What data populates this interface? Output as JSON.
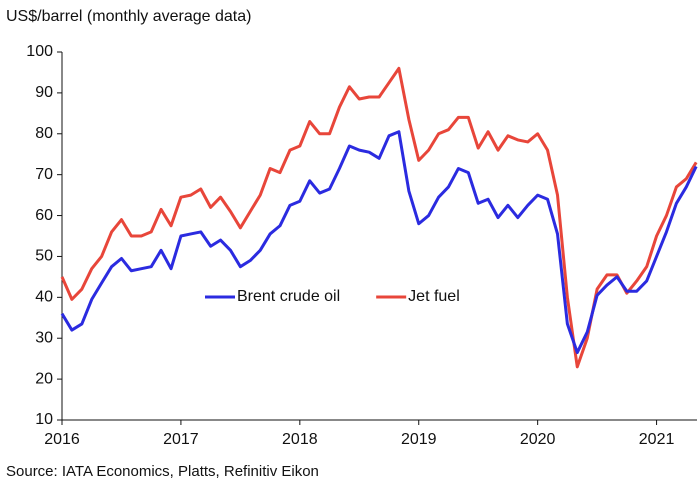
{
  "chart_data": {
    "type": "line",
    "title": "US$/barrel (monthly average data)",
    "source": "Source: IATA Economics, Platts, Refinitiv Eikon",
    "x": [
      2016,
      2016.083,
      2016.167,
      2016.25,
      2016.333,
      2016.417,
      2016.5,
      2016.583,
      2016.667,
      2016.75,
      2016.833,
      2016.917,
      2017,
      2017.083,
      2017.167,
      2017.25,
      2017.333,
      2017.417,
      2017.5,
      2017.583,
      2017.667,
      2017.75,
      2017.833,
      2017.917,
      2018,
      2018.083,
      2018.167,
      2018.25,
      2018.333,
      2018.417,
      2018.5,
      2018.583,
      2018.667,
      2018.75,
      2018.833,
      2018.917,
      2019,
      2019.083,
      2019.167,
      2019.25,
      2019.333,
      2019.417,
      2019.5,
      2019.583,
      2019.667,
      2019.75,
      2019.833,
      2019.917,
      2020,
      2020.083,
      2020.167,
      2020.25,
      2020.333,
      2020.417,
      2020.5,
      2020.583,
      2020.667,
      2020.75,
      2020.833,
      2020.917,
      2021,
      2021.083,
      2021.167,
      2021.25,
      2021.333
    ],
    "series": [
      {
        "name": "Brent crude oil",
        "color": "#2b2be0",
        "values": [
          36,
          32,
          33.5,
          39.5,
          43.5,
          47.5,
          49.5,
          46.5,
          47,
          47.5,
          51.5,
          47,
          55,
          55.5,
          56,
          52.5,
          54,
          51.5,
          47.5,
          49,
          51.5,
          55.5,
          57.5,
          62.5,
          63.5,
          68.5,
          65.5,
          66.5,
          71.5,
          77,
          76,
          75.5,
          74,
          79.5,
          80.5,
          66,
          58,
          60,
          64.5,
          67,
          71.5,
          70.5,
          63,
          64,
          59.5,
          62.5,
          59.5,
          62.5,
          65,
          64,
          55.5,
          33.5,
          26.5,
          31.5,
          40.5,
          43,
          45,
          41.5,
          41.5,
          44,
          50,
          56,
          63,
          67,
          72
        ]
      },
      {
        "name": "Jet fuel",
        "color": "#e8463a",
        "values": [
          45,
          39.5,
          42,
          47,
          50,
          56,
          59,
          55,
          55,
          56,
          61.5,
          57.5,
          64.5,
          65,
          66.5,
          62,
          64.5,
          61,
          57,
          61,
          65,
          71.5,
          70.5,
          76,
          77,
          83,
          80,
          80,
          86.5,
          91.5,
          88.5,
          89,
          89,
          92.5,
          96,
          83.5,
          73.5,
          76,
          80,
          81,
          84,
          84,
          76.5,
          80.5,
          76,
          79.5,
          78.5,
          78,
          80,
          76,
          65,
          40,
          23,
          30,
          42,
          45.5,
          45.5,
          41,
          44,
          47.5,
          55,
          60,
          67,
          69,
          73
        ]
      }
    ],
    "xlim": [
      2016,
      2021.34
    ],
    "xticks": [
      2016,
      2017,
      2018,
      2019,
      2020,
      2021
    ],
    "ylim": [
      10,
      100
    ],
    "yticks": [
      10,
      20,
      30,
      40,
      50,
      60,
      70,
      80,
      90,
      100
    ],
    "grid": false,
    "legend": "center"
  }
}
